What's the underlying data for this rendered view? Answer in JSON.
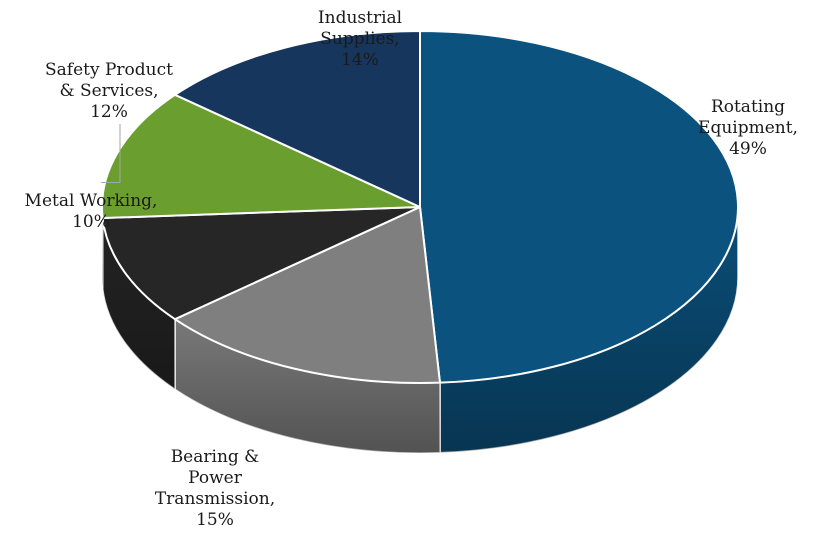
{
  "chart_data": {
    "type": "pie",
    "style": "3d",
    "legend": "none",
    "slices": [
      {
        "label": [
          "Rotating",
          "Equipment,",
          "49%"
        ],
        "name": "Rotating Equipment",
        "value": 49,
        "color": "#0b527e"
      },
      {
        "label": [
          "Bearing &",
          "Power",
          "Transmission,",
          "15%"
        ],
        "name": "Bearing & Power Transmission",
        "value": 15,
        "color": "#7f7f7f"
      },
      {
        "label": [
          "Metal Working,",
          "10%"
        ],
        "name": "Metal Working",
        "value": 10,
        "color": "#262626"
      },
      {
        "label": [
          "Safety Product",
          "& Services,",
          "12%"
        ],
        "name": "Safety Product & Services",
        "value": 12,
        "color": "#6a9e2e"
      },
      {
        "label": [
          "Industrial",
          "Supplies,",
          "14%"
        ],
        "name": "Industrial Supplies",
        "value": 14,
        "color": "#17365d"
      }
    ]
  }
}
